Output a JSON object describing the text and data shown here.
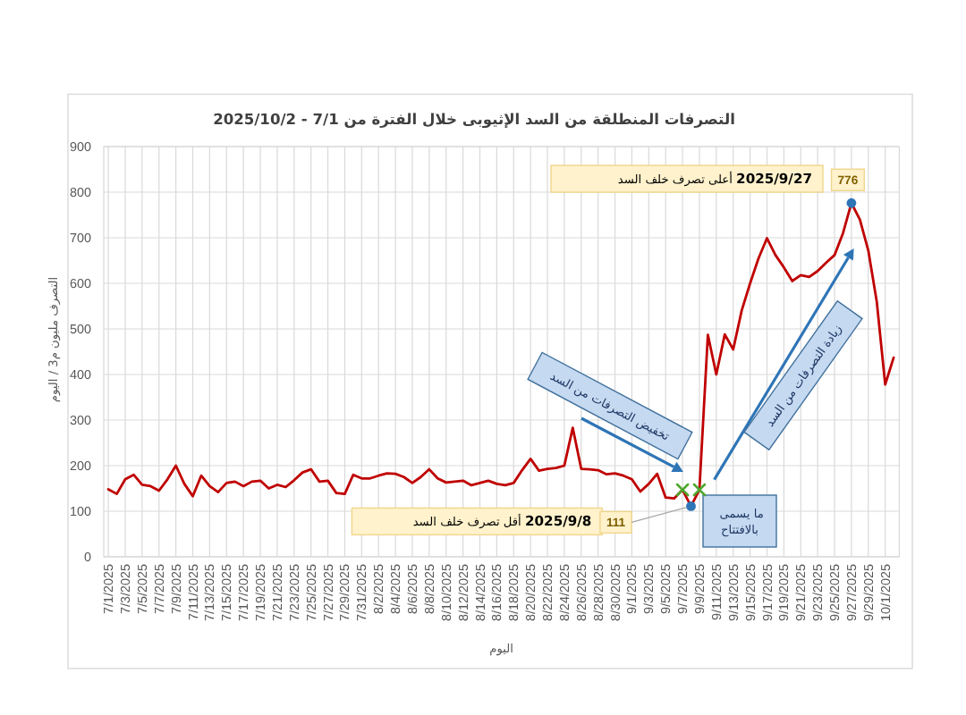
{
  "chart_data": {
    "type": "line",
    "title": "التصرفات المنطلقة من السد الإثيوبى خلال الفترة من 7/1 - 2025/10/2",
    "xlabel": "اليوم",
    "ylabel": "التصرف مليون م3 / اليوم",
    "x": [
      "2025-07-01",
      "2025-07-02",
      "2025-07-03",
      "2025-07-04",
      "2025-07-05",
      "2025-07-06",
      "2025-07-07",
      "2025-07-08",
      "2025-07-09",
      "2025-07-10",
      "2025-07-11",
      "2025-07-12",
      "2025-07-13",
      "2025-07-14",
      "2025-07-15",
      "2025-07-16",
      "2025-07-17",
      "2025-07-18",
      "2025-07-19",
      "2025-07-20",
      "2025-07-21",
      "2025-07-22",
      "2025-07-23",
      "2025-07-24",
      "2025-07-25",
      "2025-07-26",
      "2025-07-27",
      "2025-07-28",
      "2025-07-29",
      "2025-07-30",
      "2025-07-31",
      "2025-08-01",
      "2025-08-02",
      "2025-08-03",
      "2025-08-04",
      "2025-08-05",
      "2025-08-06",
      "2025-08-07",
      "2025-08-08",
      "2025-08-09",
      "2025-08-10",
      "2025-08-11",
      "2025-08-12",
      "2025-08-13",
      "2025-08-14",
      "2025-08-15",
      "2025-08-16",
      "2025-08-17",
      "2025-08-18",
      "2025-08-19",
      "2025-08-20",
      "2025-08-21",
      "2025-08-22",
      "2025-08-23",
      "2025-08-24",
      "2025-08-25",
      "2025-08-26",
      "2025-08-27",
      "2025-08-28",
      "2025-08-29",
      "2025-08-30",
      "2025-08-31",
      "2025-09-01",
      "2025-09-02",
      "2025-09-03",
      "2025-09-04",
      "2025-09-05",
      "2025-09-06",
      "2025-09-07",
      "2025-09-08",
      "2025-09-09",
      "2025-09-10",
      "2025-09-11",
      "2025-09-12",
      "2025-09-13",
      "2025-09-14",
      "2025-09-15",
      "2025-09-16",
      "2025-09-17",
      "2025-09-18",
      "2025-09-19",
      "2025-09-20",
      "2025-09-21",
      "2025-09-22",
      "2025-09-23",
      "2025-09-24",
      "2025-09-25",
      "2025-09-26",
      "2025-09-27",
      "2025-09-28",
      "2025-09-29",
      "2025-09-30",
      "2025-10-01",
      "2025-10-02"
    ],
    "xlim": [
      "2025-06-30T11:00",
      "2025-10-02T16:00"
    ],
    "xticks": [
      {
        "value": "2025-07-01",
        "label": "7/1/2025"
      },
      {
        "value": "2025-07-03",
        "label": "7/3/2025"
      },
      {
        "value": "2025-07-05",
        "label": "7/5/2025"
      },
      {
        "value": "2025-07-07",
        "label": "7/7/2025"
      },
      {
        "value": "2025-07-09",
        "label": "7/9/2025"
      },
      {
        "value": "2025-07-11",
        "label": "7/11/2025"
      },
      {
        "value": "2025-07-13",
        "label": "7/13/2025"
      },
      {
        "value": "2025-07-15",
        "label": "7/15/2025"
      },
      {
        "value": "2025-07-17",
        "label": "7/17/2025"
      },
      {
        "value": "2025-07-19",
        "label": "7/19/2025"
      },
      {
        "value": "2025-07-21",
        "label": "7/21/2025"
      },
      {
        "value": "2025-07-23",
        "label": "7/23/2025"
      },
      {
        "value": "2025-07-25",
        "label": "7/25/2025"
      },
      {
        "value": "2025-07-27",
        "label": "7/27/2025"
      },
      {
        "value": "2025-07-29",
        "label": "7/29/2025"
      },
      {
        "value": "2025-07-31",
        "label": "7/31/2025"
      },
      {
        "value": "2025-08-02",
        "label": "8/2/2025"
      },
      {
        "value": "2025-08-04",
        "label": "8/4/2025"
      },
      {
        "value": "2025-08-06",
        "label": "8/6/2025"
      },
      {
        "value": "2025-08-08",
        "label": "8/8/2025"
      },
      {
        "value": "2025-08-10",
        "label": "8/10/2025"
      },
      {
        "value": "2025-08-12",
        "label": "8/12/2025"
      },
      {
        "value": "2025-08-14",
        "label": "8/14/2025"
      },
      {
        "value": "2025-08-16",
        "label": "8/16/2025"
      },
      {
        "value": "2025-08-18",
        "label": "8/18/2025"
      },
      {
        "value": "2025-08-20",
        "label": "8/20/2025"
      },
      {
        "value": "2025-08-22",
        "label": "8/22/2025"
      },
      {
        "value": "2025-08-24",
        "label": "8/24/2025"
      },
      {
        "value": "2025-08-26",
        "label": "8/26/2025"
      },
      {
        "value": "2025-08-28",
        "label": "8/28/2025"
      },
      {
        "value": "2025-08-30",
        "label": "8/30/2025"
      },
      {
        "value": "2025-09-01",
        "label": "9/1/2025"
      },
      {
        "value": "2025-09-03",
        "label": "9/3/2025"
      },
      {
        "value": "2025-09-05",
        "label": "9/5/2025"
      },
      {
        "value": "2025-09-07",
        "label": "9/7/2025"
      },
      {
        "value": "2025-09-09",
        "label": "9/9/2025"
      },
      {
        "value": "2025-09-11",
        "label": "9/11/2025"
      },
      {
        "value": "2025-09-13",
        "label": "9/13/2025"
      },
      {
        "value": "2025-09-15",
        "label": "9/15/2025"
      },
      {
        "value": "2025-09-17",
        "label": "9/17/2025"
      },
      {
        "value": "2025-09-19",
        "label": "9/19/2025"
      },
      {
        "value": "2025-09-21",
        "label": "9/21/2025"
      },
      {
        "value": "2025-09-23",
        "label": "9/23/2025"
      },
      {
        "value": "2025-09-25",
        "label": "9/25/2025"
      },
      {
        "value": "2025-09-27",
        "label": "9/27/2025"
      },
      {
        "value": "2025-09-29",
        "label": "9/29/2025"
      },
      {
        "value": "2025-10-01",
        "label": "10/1/2025"
      }
    ],
    "ylim": [
      0,
      900
    ],
    "yticks": [
      0,
      100,
      200,
      300,
      400,
      500,
      600,
      700,
      800,
      900
    ],
    "grid": true,
    "series": [
      {
        "color": "#c00000",
        "line_style": "solid",
        "values": [
          148,
          138,
          170,
          180,
          158,
          155,
          145,
          170,
          200,
          160,
          133,
          178,
          155,
          142,
          162,
          165,
          155,
          165,
          167,
          150,
          158,
          153,
          168,
          185,
          192,
          165,
          167,
          140,
          138,
          180,
          172,
          172,
          178,
          183,
          182,
          175,
          162,
          175,
          192,
          172,
          163,
          165,
          167,
          157,
          162,
          167,
          160,
          157,
          162,
          190,
          215,
          189,
          193,
          195,
          200,
          283,
          193,
          192,
          190,
          181,
          183,
          178,
          170,
          143,
          160,
          182,
          130,
          128,
          147,
          111,
          147,
          487,
          400,
          488,
          455,
          540,
          600,
          655,
          699,
          662,
          635,
          605,
          618,
          614,
          627,
          645,
          662,
          710,
          776,
          740,
          672,
          560,
          378,
          437
        ]
      },
      {
        "type": "scatter",
        "color": "#2e75b6",
        "marker": "circle",
        "x": [
          "2025-09-08",
          "2025-09-27"
        ],
        "values": [
          111,
          776
        ],
        "value_labels": [
          "111",
          "776"
        ]
      },
      {
        "type": "scatter",
        "color": "#4ea72e",
        "marker": "cross",
        "x": [
          "2025-09-07",
          "2025-09-09"
        ],
        "values": [
          147,
          147
        ]
      }
    ],
    "annotations": [
      "**2025/9/27** أعلى تصرف خلف السد",
      "**2025/9/8** أقل تصرف خلف السد",
      "تخفيض التصرفات من السد",
      "زيادة التصرفات من السد",
      "ما يسمى بالافتتاح"
    ]
  }
}
